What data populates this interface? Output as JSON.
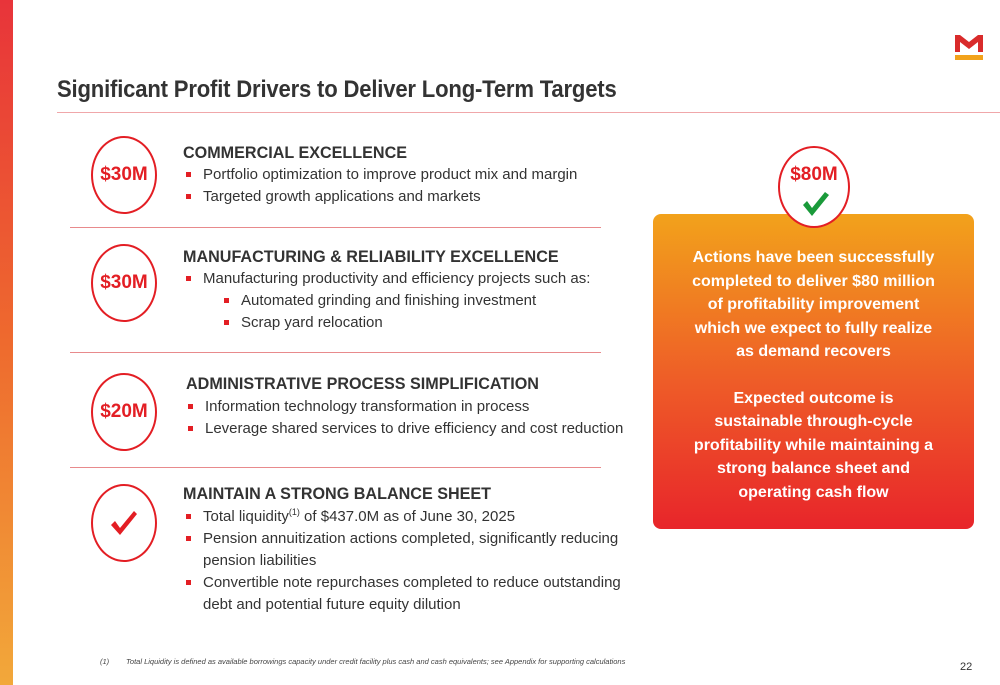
{
  "title": "Significant Profit Drivers to Deliver Long-Term Targets",
  "sections": [
    {
      "value": "$30M",
      "heading": "COMMERCIAL EXCELLENCE",
      "bullets": [
        "Portfolio optimization to improve product mix and margin",
        "Targeted growth applications and markets"
      ]
    },
    {
      "value": "$30M",
      "heading": "MANUFACTURING & RELIABILITY EXCELLENCE",
      "bullets": [
        "Manufacturing productivity and efficiency projects such as:"
      ],
      "sub_bullets": [
        "Automated grinding and finishing investment",
        "Scrap yard relocation"
      ]
    },
    {
      "value": "$20M",
      "heading": "ADMINISTRATIVE PROCESS SIMPLIFICATION",
      "bullets": [
        "Information technology transformation in process",
        "Leverage shared services to drive efficiency and cost reduction"
      ]
    },
    {
      "heading": "MAINTAIN A STRONG BALANCE SHEET",
      "bullets": [
        "Total liquidity",
        "Pension annuitization actions completed, significantly reducing pension liabilities",
        "Convertible note repurchases completed to reduce outstanding debt and potential future equity dilution"
      ],
      "liquidity_sup": "(1)",
      "liquidity_rest": " of $437.0M as of June 30, 2025"
    }
  ],
  "summary": {
    "value": "$80M",
    "paragraph1": "Actions have been successfully\ncompleted to deliver $80 million\nof profitability improvement\nwhich we expect to fully realize\nas demand recovers",
    "paragraph2": "Expected outcome is\nsustainable through-cycle\nprofitability while maintaining a\nstrong balance sheet and\noperating cash flow"
  },
  "footnote": {
    "marker": "(1)",
    "text": "Total Liquidity is defined as available borrowings capacity under credit facility plus cash and cash equivalents; see Appendix for supporting calculations"
  },
  "page_number": "22",
  "colors": {
    "accent_red": "#e31e24",
    "panel_top": "#f2a21b",
    "panel_bottom": "#e8252a"
  },
  "icons": [
    "logo-icon",
    "checkmark-icon"
  ]
}
